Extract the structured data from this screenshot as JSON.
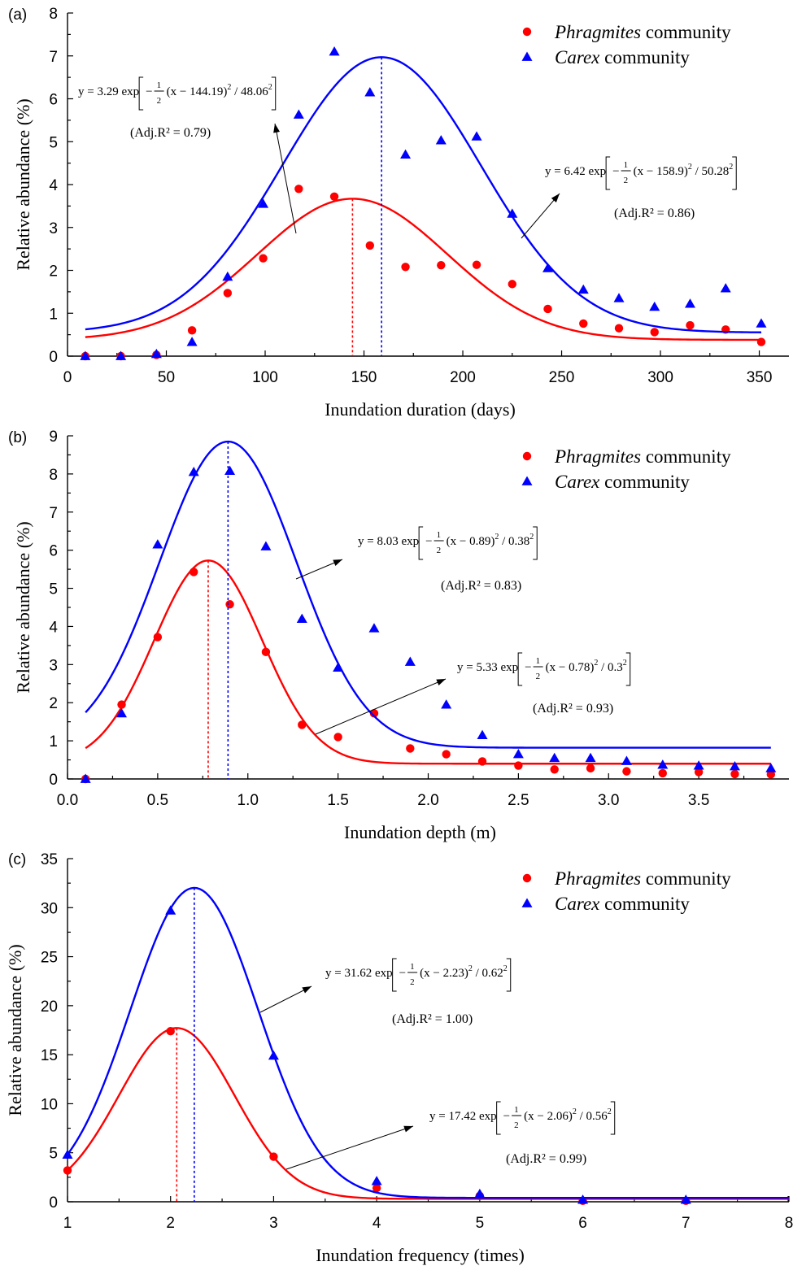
{
  "figure": {
    "colors": {
      "phragmites": "#ff0000",
      "carex": "#0000ff"
    },
    "ylabel": "Relative abundance (%)"
  },
  "chart_data": [
    {
      "type": "scatter",
      "panel": "(a)",
      "xlabel": "Inundation duration (days)",
      "ylabel": "Relative abundance (%)",
      "xlim": [
        0,
        365
      ],
      "ylim": [
        0,
        8
      ],
      "xticks": [
        "0",
        "50",
        "100",
        "150",
        "200",
        "250",
        "300",
        "350"
      ],
      "yticks": [
        "0",
        "1",
        "2",
        "3",
        "4",
        "5",
        "6",
        "7",
        "8"
      ],
      "legend_position": "top-right",
      "series": [
        {
          "name": "Phragmites community",
          "name_italic": "Phragmites",
          "name_rest": " community",
          "color": "#ff0000",
          "marker": "circle",
          "x": [
            9,
            27,
            45,
            63,
            81,
            99,
            117,
            135,
            153,
            171,
            189,
            207,
            225,
            243,
            261,
            279,
            297,
            315,
            333,
            351
          ],
          "y": [
            0,
            0,
            0.03,
            0.6,
            1.47,
            2.28,
            3.9,
            3.72,
            2.58,
            2.08,
            2.12,
            2.13,
            1.68,
            1.1,
            0.76,
            0.65,
            0.56,
            0.72,
            0.62,
            0.33
          ],
          "fit": {
            "a": 3.29,
            "mu": 144.19,
            "sigma": 48.06,
            "c": 0.38,
            "x_range": [
              9,
              351
            ]
          },
          "equation": {
            "prefix": "y = 3.29 exp",
            "coef": "−",
            "body": "(x − 144.19)",
            "tail": " / 48.06",
            "r2_text": "(Adj.R² = 0.79)"
          }
        },
        {
          "name": "Carex community",
          "name_italic": "Carex",
          "name_rest": " community",
          "color": "#0000ff",
          "marker": "triangle",
          "x": [
            9,
            27,
            45,
            63,
            81,
            99,
            117,
            135,
            153,
            171,
            189,
            207,
            225,
            243,
            261,
            279,
            297,
            315,
            333,
            351
          ],
          "y": [
            0,
            0,
            0.05,
            0.33,
            1.85,
            3.55,
            5.63,
            7.1,
            6.15,
            4.7,
            5.03,
            5.12,
            3.32,
            2.05,
            1.55,
            1.35,
            1.15,
            1.22,
            1.58,
            0.76
          ],
          "fit": {
            "a": 6.42,
            "mu": 158.9,
            "sigma": 50.28,
            "c": 0.55,
            "x_range": [
              9,
              351
            ]
          },
          "equation": {
            "prefix": "y = 6.42 exp",
            "coef": "−",
            "body": "(x − 158.9)",
            "tail": " / 50.28",
            "r2_text": "(Adj.R² = 0.86)"
          }
        }
      ]
    },
    {
      "type": "scatter",
      "panel": "(b)",
      "xlabel": "Inundation depth (m)",
      "ylabel": "Relative abundance (%)",
      "xlim": [
        0,
        4
      ],
      "ylim": [
        0,
        9
      ],
      "xticks": [
        "0.0",
        "0.5",
        "1.0",
        "1.5",
        "2.0",
        "2.5",
        "3.0",
        "3.5"
      ],
      "yticks": [
        "0",
        "1",
        "2",
        "3",
        "4",
        "5",
        "6",
        "7",
        "8",
        "9"
      ],
      "legend_position": "top-right",
      "series": [
        {
          "name": "Phragmites community",
          "name_italic": "Phragmites",
          "name_rest": " community",
          "color": "#ff0000",
          "marker": "circle",
          "x": [
            0.1,
            0.3,
            0.5,
            0.7,
            0.9,
            1.1,
            1.3,
            1.5,
            1.7,
            1.9,
            2.1,
            2.3,
            2.5,
            2.7,
            2.9,
            3.1,
            3.3,
            3.5,
            3.7,
            3.9
          ],
          "y": [
            0,
            1.95,
            3.72,
            5.43,
            4.58,
            3.33,
            1.42,
            1.1,
            1.72,
            0.8,
            0.65,
            0.46,
            0.35,
            0.25,
            0.28,
            0.2,
            0.15,
            0.18,
            0.13,
            0.12
          ],
          "fit": {
            "a": 5.33,
            "mu": 0.78,
            "sigma": 0.3,
            "c": 0.4,
            "x_range": [
              0.1,
              3.9
            ]
          },
          "equation": {
            "prefix": "y = 5.33 exp",
            "coef": "−",
            "body": "(x − 0.78)",
            "tail": " / 0.3",
            "r2_text": "(Adj.R² = 0.93)"
          }
        },
        {
          "name": "Carex community",
          "name_italic": "Carex",
          "name_rest": " community",
          "color": "#0000ff",
          "marker": "triangle",
          "x": [
            0.1,
            0.3,
            0.5,
            0.7,
            0.9,
            1.1,
            1.3,
            1.5,
            1.7,
            1.9,
            2.1,
            2.3,
            2.5,
            2.7,
            2.9,
            3.1,
            3.3,
            3.5,
            3.7,
            3.9
          ],
          "y": [
            0,
            1.72,
            6.15,
            8.05,
            8.08,
            6.1,
            4.2,
            2.92,
            3.95,
            3.07,
            1.95,
            1.15,
            0.65,
            0.55,
            0.55,
            0.47,
            0.37,
            0.35,
            0.33,
            0.28
          ],
          "fit": {
            "a": 8.03,
            "mu": 0.89,
            "sigma": 0.38,
            "c": 0.82,
            "x_range": [
              0.1,
              3.9
            ]
          },
          "equation": {
            "prefix": "y = 8.03 exp",
            "coef": "−",
            "body": "(x − 0.89)",
            "tail": " / 0.38",
            "r2_text": "(Adj.R² = 0.83)"
          }
        }
      ]
    },
    {
      "type": "scatter",
      "panel": "(c)",
      "xlabel": "Inundation frequency (times)",
      "ylabel": "Relative abundance (%)",
      "xlim": [
        1,
        8
      ],
      "ylim": [
        0,
        35
      ],
      "xticks": [
        "1",
        "2",
        "3",
        "4",
        "5",
        "6",
        "7",
        "8"
      ],
      "yticks": [
        "0",
        "5",
        "10",
        "15",
        "20",
        "25",
        "30",
        "35"
      ],
      "legend_position": "top-right",
      "series": [
        {
          "name": "Phragmites community",
          "name_italic": "Phragmites",
          "name_rest": " community",
          "color": "#ff0000",
          "marker": "circle",
          "x": [
            1,
            2,
            3,
            4,
            5,
            6,
            7
          ],
          "y": [
            3.2,
            17.4,
            4.6,
            1.4,
            0.6,
            0.1,
            0.1
          ],
          "fit": {
            "a": 17.42,
            "mu": 2.06,
            "sigma": 0.56,
            "c": 0.3,
            "x_range": [
              1,
              8
            ]
          },
          "equation": {
            "prefix": "y = 17.42 exp",
            "coef": "−",
            "body": "(x − 2.06)",
            "tail": " / 0.56",
            "r2_text": "(Adj.R² = 0.99)"
          }
        },
        {
          "name": "Carex community",
          "name_italic": "Carex",
          "name_rest": " community",
          "color": "#0000ff",
          "marker": "triangle",
          "x": [
            1,
            2,
            3,
            4,
            5,
            6,
            7
          ],
          "y": [
            4.8,
            29.7,
            14.9,
            2.1,
            0.8,
            0.2,
            0.2
          ],
          "fit": {
            "a": 31.62,
            "mu": 2.23,
            "sigma": 0.62,
            "c": 0.4,
            "x_range": [
              1,
              8
            ]
          },
          "equation": {
            "prefix": "y = 31.62 exp",
            "coef": "−",
            "body": "(x − 2.23)",
            "tail": " / 0.62",
            "r2_text": "(Adj.R² = 1.00)"
          }
        }
      ]
    }
  ]
}
